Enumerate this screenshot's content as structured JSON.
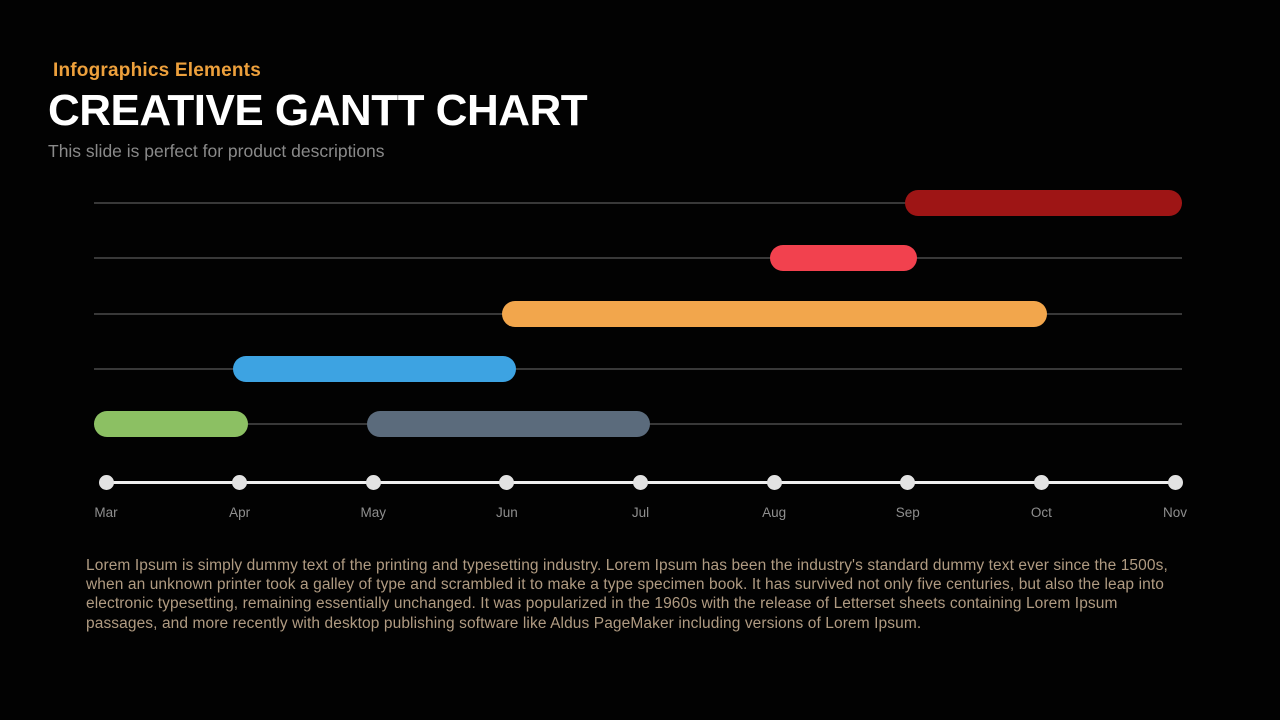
{
  "slide": {
    "eyebrow": "Infographics Elements",
    "title": "CREATIVE GANTT CHART",
    "subtitle": "This slide is perfect for product descriptions",
    "body": "Lorem Ipsum is simply dummy text of the printing and typesetting industry. Lorem Ipsum has been the industry's standard dummy text ever since the 1500s, when an unknown printer took a galley of type and scrambled it to make a type specimen book. It has survived not only five centuries, but also the leap into electronic typesetting, remaining essentially unchanged. It was popularized in the 1960s with the release of Letterset sheets containing Lorem Ipsum passages, and more recently with desktop publishing software like Aldus PageMaker including versions of Lorem Ipsum."
  },
  "colors": {
    "background": "#020202",
    "eyebrow": "#EDA03C",
    "title": "#FFFFFF",
    "subtitle": "#8A8A8A",
    "body": "#B09B82",
    "gridline": "#383838",
    "axis_line": "#EFEFEF",
    "axis_dot": "#E2E2E2",
    "axis_label": "#8F8F8F"
  },
  "chart_data": {
    "type": "gantt",
    "title": "",
    "xlabel": "",
    "ylabel": "",
    "grid": true,
    "legend": false,
    "x_tick_labels": [
      "Mar",
      "Apr",
      "May",
      "Jun",
      "Jul",
      "Aug",
      "Sep",
      "Oct",
      "Nov"
    ],
    "x_range_month_index": [
      0,
      8
    ],
    "row_count": 5,
    "tasks": [
      {
        "row": 0,
        "start_month": "Sep",
        "end_month": "Nov",
        "start_idx": 5.98,
        "end_idx": 8.05,
        "color": "#9E1515"
      },
      {
        "row": 1,
        "start_month": "Aug",
        "end_month": "Sep",
        "start_idx": 4.97,
        "end_idx": 6.07,
        "color": "#F2414E"
      },
      {
        "row": 2,
        "start_month": "Jun",
        "end_month": "Oct",
        "start_idx": 2.96,
        "end_idx": 7.04,
        "color": "#F2A64C"
      },
      {
        "row": 3,
        "start_month": "Apr",
        "end_month": "Jun",
        "start_idx": 0.95,
        "end_idx": 3.07,
        "color": "#3DA3E2"
      },
      {
        "row": 4,
        "start_month": "Mar",
        "end_month": "Apr",
        "start_idx": -0.09,
        "end_idx": 1.06,
        "color": "#8CC063"
      },
      {
        "row": 4,
        "start_month": "May",
        "end_month": "Jul",
        "start_idx": 1.95,
        "end_idx": 4.07,
        "color": "#5B6B7C"
      }
    ]
  }
}
